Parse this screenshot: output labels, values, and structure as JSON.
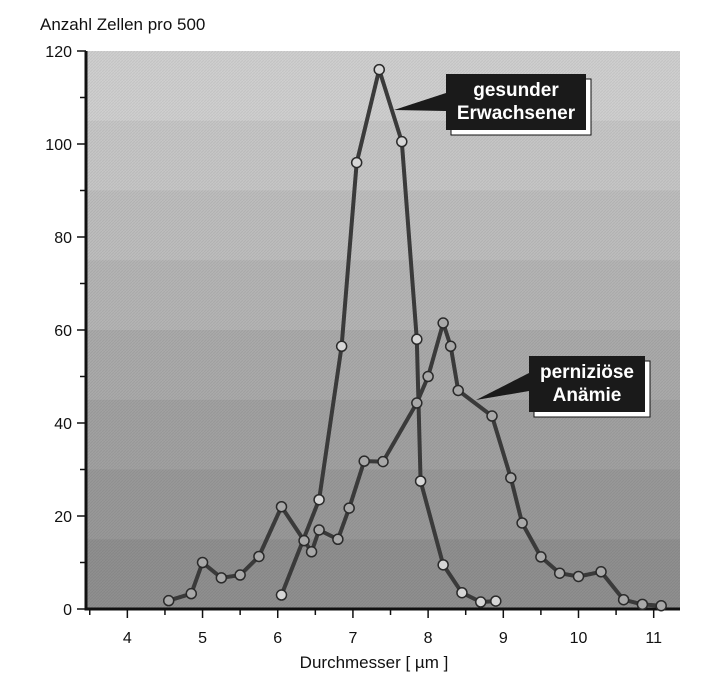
{
  "chart_data": {
    "type": "line",
    "title": "",
    "ylabel": "Anzahl Zellen pro 500",
    "xlabel": "Durchmesser [ µm ]",
    "xlim": [
      3.45,
      11.35
    ],
    "ylim": [
      0,
      120
    ],
    "x_ticks": [
      4,
      5,
      6,
      7,
      8,
      9,
      10,
      11
    ],
    "y_ticks": [
      0,
      20,
      40,
      60,
      80,
      100,
      120
    ],
    "grid": false,
    "background": "banded gray gradient",
    "series": [
      {
        "name": "gesunder Erwachsener",
        "callout": [
          "gesunder",
          "Erwachsener"
        ],
        "color": "#3a3a3a",
        "marker_fill": "#d6d6d6",
        "x": [
          6.05,
          6.55,
          6.85,
          7.05,
          7.35,
          7.65,
          7.85,
          7.9,
          8.2,
          8.45,
          8.7,
          8.9
        ],
        "y": [
          3,
          23.5,
          56.5,
          96,
          116,
          100.5,
          58,
          27.5,
          9.5,
          3.5,
          1.5,
          1.7
        ]
      },
      {
        "name": "perniziöse Anämie",
        "callout": [
          "perniziöse",
          "Anämie"
        ],
        "color": "#3a3a3a",
        "marker_fill": "#a8a8a8",
        "x": [
          4.55,
          4.85,
          5.0,
          5.25,
          5.5,
          5.75,
          6.05,
          6.35,
          6.45,
          6.55,
          6.8,
          6.95,
          7.15,
          7.4,
          7.85,
          8.0,
          8.2,
          8.3,
          8.4,
          8.85,
          9.1,
          9.25,
          9.5,
          9.75,
          10.0,
          10.3,
          10.6,
          10.85,
          11.1
        ],
        "y": [
          1.8,
          3.3,
          10,
          6.7,
          7.3,
          11.3,
          22,
          14.7,
          12.3,
          17,
          15,
          21.7,
          31.8,
          31.7,
          44.3,
          50,
          61.5,
          56.5,
          47,
          41.5,
          28.2,
          18.5,
          11.2,
          7.7,
          7,
          8,
          2,
          1,
          0.7
        ]
      }
    ],
    "colors": {
      "line": "#3a3a3a",
      "axis": "#111111",
      "callout_box": "#1a1a1a",
      "band_top": "#cfcfcf",
      "band_bottom": "#8f8f8f"
    }
  }
}
